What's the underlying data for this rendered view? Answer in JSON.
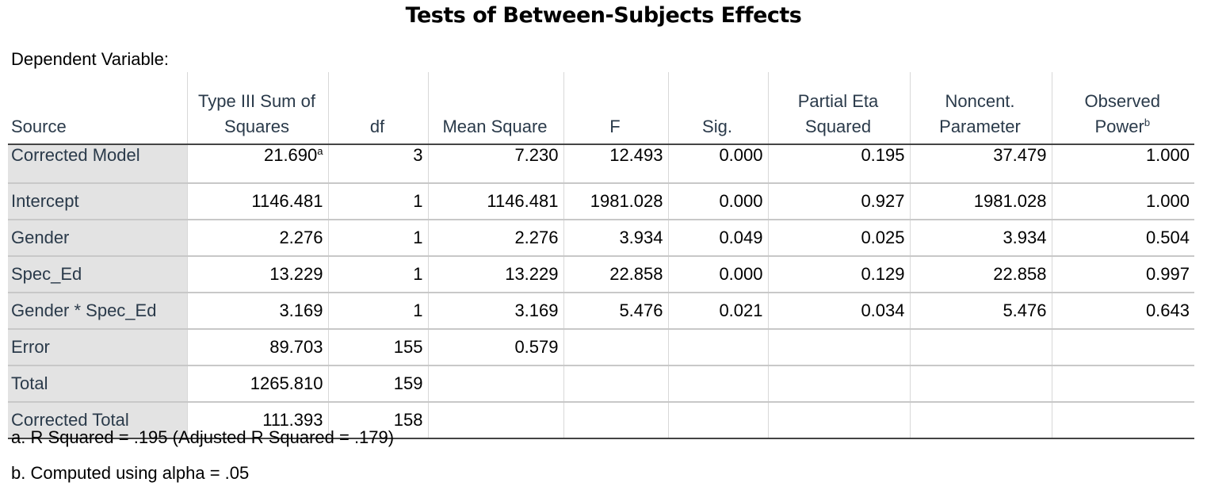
{
  "title": "Tests of Between-Subjects Effects",
  "dependent_variable_label": "Dependent Variable:",
  "columns": [
    {
      "line1": "",
      "line2": "Source",
      "sup": ""
    },
    {
      "line1": "Type III Sum of",
      "line2": "Squares",
      "sup": ""
    },
    {
      "line1": "",
      "line2": "df",
      "sup": ""
    },
    {
      "line1": "",
      "line2": "Mean Square",
      "sup": ""
    },
    {
      "line1": "",
      "line2": "F",
      "sup": ""
    },
    {
      "line1": "",
      "line2": "Sig.",
      "sup": ""
    },
    {
      "line1": "Partial Eta",
      "line2": "Squared",
      "sup": ""
    },
    {
      "line1": "Noncent.",
      "line2": "Parameter",
      "sup": ""
    },
    {
      "line1": "Observed",
      "line2": "Power",
      "sup": "b"
    }
  ],
  "rows": [
    {
      "source": "Corrected Model",
      "ss": "21.690",
      "ss_sup": "a",
      "df": "3",
      "ms": "7.230",
      "f": "12.493",
      "sig": "0.000",
      "eta": "0.195",
      "noncent": "37.479",
      "power": "1.000"
    },
    {
      "source": "Intercept",
      "ss": "1146.481",
      "ss_sup": "",
      "df": "1",
      "ms": "1146.481",
      "f": "1981.028",
      "sig": "0.000",
      "eta": "0.927",
      "noncent": "1981.028",
      "power": "1.000"
    },
    {
      "source": "Gender",
      "ss": "2.276",
      "ss_sup": "",
      "df": "1",
      "ms": "2.276",
      "f": "3.934",
      "sig": "0.049",
      "eta": "0.025",
      "noncent": "3.934",
      "power": "0.504"
    },
    {
      "source": "Spec_Ed",
      "ss": "13.229",
      "ss_sup": "",
      "df": "1",
      "ms": "13.229",
      "f": "22.858",
      "sig": "0.000",
      "eta": "0.129",
      "noncent": "22.858",
      "power": "0.997"
    },
    {
      "source": "Gender * Spec_Ed",
      "ss": "3.169",
      "ss_sup": "",
      "df": "1",
      "ms": "3.169",
      "f": "5.476",
      "sig": "0.021",
      "eta": "0.034",
      "noncent": "5.476",
      "power": "0.643"
    },
    {
      "source": "Error",
      "ss": "89.703",
      "ss_sup": "",
      "df": "155",
      "ms": "0.579",
      "f": "",
      "sig": "",
      "eta": "",
      "noncent": "",
      "power": ""
    },
    {
      "source": "Total",
      "ss": "1265.810",
      "ss_sup": "",
      "df": "159",
      "ms": "",
      "f": "",
      "sig": "",
      "eta": "",
      "noncent": "",
      "power": ""
    },
    {
      "source": "Corrected Total",
      "ss": "111.393",
      "ss_sup": "",
      "df": "158",
      "ms": "",
      "f": "",
      "sig": "",
      "eta": "",
      "noncent": "",
      "power": ""
    }
  ],
  "footnotes": {
    "a": "a. R Squared = .195 (Adjusted R Squared = .179)",
    "b": "b. Computed using alpha = .05"
  }
}
